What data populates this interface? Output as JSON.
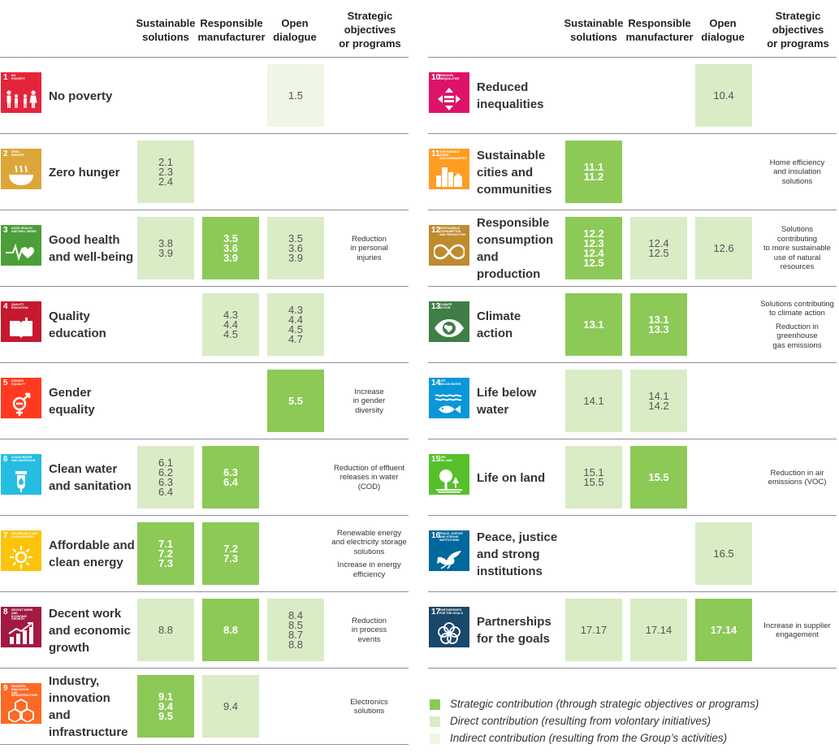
{
  "headers": [
    "Sustainable\nsolutions",
    "Responsible\nmanufacturer",
    "Open\ndialogue",
    "Strategic\nobjectives\nor programs"
  ],
  "colors": {
    "strategic": "#8cc957",
    "direct": "#d9ecc6",
    "indirect": "#eef6e6",
    "rule": "#8e8f9a"
  },
  "legend": [
    {
      "type": "strategic",
      "label": "Strategic contribution (through strategic objectives or programs)"
    },
    {
      "type": "direct",
      "label": "Direct contribution (resulting from volontary initiatives)"
    },
    {
      "type": "indirect",
      "label": "Indirect contribution (resulting from the Group’s activities)"
    }
  ],
  "goals": [
    {
      "num": "1",
      "mini": "NO\nPOVERTY",
      "color": "#e5243b",
      "icon": "people-family-icon",
      "name": "No poverty",
      "cells": [
        null,
        null,
        {
          "type": "indirect",
          "text": "1.5"
        }
      ],
      "objectives": []
    },
    {
      "num": "2",
      "mini": "ZERO\nHUNGER",
      "color": "#dda63a",
      "icon": "bowl-icon",
      "name": "Zero hunger",
      "cells": [
        {
          "type": "direct",
          "text": "2.1\n2.3\n2.4"
        },
        null,
        null
      ],
      "objectives": []
    },
    {
      "num": "3",
      "mini": "GOOD HEALTH\nAND WELL-BEING",
      "color": "#4c9f38",
      "icon": "heartbeat-icon",
      "name": "Good health\nand well-being",
      "cells": [
        {
          "type": "direct",
          "text": "3.8\n3.9"
        },
        {
          "type": "strategic",
          "text": "3.5\n3.6\n3.9"
        },
        {
          "type": "direct",
          "text": "3.5\n3.6\n3.9"
        }
      ],
      "objectives": [
        "Reduction\nin personal\ninjuries"
      ]
    },
    {
      "num": "4",
      "mini": "QUALITY\nEDUCATION",
      "color": "#c5192d",
      "icon": "book-icon",
      "name": "Quality\neducation",
      "cells": [
        null,
        {
          "type": "direct",
          "text": "4.3\n4.4\n4.5"
        },
        {
          "type": "direct",
          "text": "4.3\n4.4\n4.5\n4.7"
        }
      ],
      "objectives": []
    },
    {
      "num": "5",
      "mini": "GENDER\nEQUALITY",
      "color": "#ff3a21",
      "icon": "gender-icon",
      "name": "Gender\nequality",
      "cells": [
        null,
        null,
        {
          "type": "strategic",
          "text": "5.5"
        }
      ],
      "objectives": [
        "Increase\nin gender\ndiversity"
      ]
    },
    {
      "num": "6",
      "mini": "CLEAN WATER\nAND SANITATION",
      "color": "#26bde2",
      "icon": "water-drop-icon",
      "name": "Clean water\nand sanitation",
      "cells": [
        {
          "type": "direct",
          "text": "6.1\n6.2\n6.3\n6.4"
        },
        {
          "type": "strategic",
          "text": "6.3\n6.4"
        },
        null
      ],
      "objectives": [
        "Reduction of effluent\nreleases in water\n(COD)"
      ]
    },
    {
      "num": "7",
      "mini": "AFFORDABLE AND\nCLEAN ENERGY",
      "color": "#fcc30b",
      "icon": "sun-icon",
      "name": "Affordable and\nclean energy",
      "cells": [
        {
          "type": "strategic",
          "text": "7.1\n7.2\n7.3"
        },
        {
          "type": "strategic",
          "text": "7.2\n7.3"
        },
        null
      ],
      "objectives": [
        "Renewable energy\nand electricity storage\nsolutions",
        "Increase in energy\nefficiency"
      ]
    },
    {
      "num": "8",
      "mini": "DECENT WORK AND\nECONOMIC GROWTH",
      "color": "#a21942",
      "icon": "growth-chart-icon",
      "name": "Decent work\nand economic\ngrowth",
      "cells": [
        {
          "type": "direct",
          "text": "8.8"
        },
        {
          "type": "strategic",
          "text": "8.8"
        },
        {
          "type": "direct",
          "text": "8.4\n8.5\n8.7\n8.8"
        }
      ],
      "objectives": [
        "Reduction\nin process\nevents"
      ]
    },
    {
      "num": "9",
      "mini": "INDUSTRY, INNOVATION\nAND INFRASTRUCTURE",
      "color": "#fd6925",
      "icon": "cubes-icon",
      "name": "Industry,\ninnovation\nand infrastructure",
      "cells": [
        {
          "type": "strategic",
          "text": "9.1\n9.4\n9.5"
        },
        {
          "type": "direct",
          "text": "9.4"
        },
        null
      ],
      "objectives": [
        "Electronics\nsolutions"
      ]
    },
    {
      "num": "10",
      "mini": "REDUCED\nINEQUALITIES",
      "color": "#dd1367",
      "icon": "equality-icon",
      "name": "Reduced\ninequalities",
      "cells": [
        null,
        null,
        {
          "type": "direct",
          "text": "10.4"
        }
      ],
      "objectives": []
    },
    {
      "num": "11",
      "mini": "SUSTAINABLE CITIES\nAND COMMUNITIES",
      "color": "#fd9d24",
      "icon": "city-icon",
      "name": "Sustainable\ncities and\ncommunities",
      "cells": [
        {
          "type": "strategic",
          "text": "11.1\n11.2"
        },
        null,
        null
      ],
      "objectives": [
        "Home efficiency\nand insulation\nsolutions"
      ]
    },
    {
      "num": "12",
      "mini": "RESPONSIBLE\nCONSUMPTION\nAND PRODUCTION",
      "color": "#bf8b2e",
      "icon": "infinity-icon",
      "name": "Responsible\nconsumption\nand production",
      "cells": [
        {
          "type": "strategic",
          "text": "12.2\n12.3\n12.4\n12.5"
        },
        {
          "type": "direct",
          "text": "12.4\n12.5"
        },
        {
          "type": "direct",
          "text": "12.6"
        }
      ],
      "objectives": [
        "Solutions\ncontributing\nto more sustainable\nuse of natural\nresources"
      ]
    },
    {
      "num": "13",
      "mini": "CLIMATE\nACTION",
      "color": "#3f7e44",
      "icon": "eye-earth-icon",
      "name": "Climate\naction",
      "cells": [
        {
          "type": "strategic",
          "text": "13.1"
        },
        {
          "type": "strategic",
          "text": "13.1\n13.3"
        },
        null
      ],
      "objectives": [
        "Solutions contributing\nto climate action",
        "Reduction in greenhouse\ngas emissions"
      ]
    },
    {
      "num": "14",
      "mini": "LIFE\nBELOW WATER",
      "color": "#0a97d9",
      "icon": "fish-icon",
      "name": "Life below\nwater",
      "cells": [
        {
          "type": "direct",
          "text": "14.1"
        },
        {
          "type": "direct",
          "text": "14.1\n14.2"
        },
        null
      ],
      "objectives": []
    },
    {
      "num": "15",
      "mini": "LIFE\nON LAND",
      "color": "#56c02b",
      "icon": "tree-icon",
      "name": "Life on land",
      "cells": [
        {
          "type": "direct",
          "text": "15.1\n15.5"
        },
        {
          "type": "strategic",
          "text": "15.5"
        },
        null
      ],
      "objectives": [
        "Reduction in air\nemissions (VOC)"
      ]
    },
    {
      "num": "16",
      "mini": "PEACE, JUSTICE\nAND STRONG\nINSTITUTIONS",
      "color": "#00689d",
      "icon": "dove-icon",
      "name": "Peace, justice\nand strong\ninstitutions",
      "cells": [
        null,
        null,
        {
          "type": "direct",
          "text": "16.5"
        }
      ],
      "objectives": []
    },
    {
      "num": "17",
      "mini": "PARTNERSHIPS\nFOR THE GOALS",
      "color": "#19486a",
      "icon": "rings-icon",
      "name": "Partnerships\nfor the goals",
      "cells": [
        {
          "type": "direct",
          "text": "17.17"
        },
        {
          "type": "direct",
          "text": "17.14"
        },
        {
          "type": "strategic",
          "text": "17.14"
        }
      ],
      "objectives": [
        "Increase in supplier\nengagement"
      ]
    }
  ]
}
